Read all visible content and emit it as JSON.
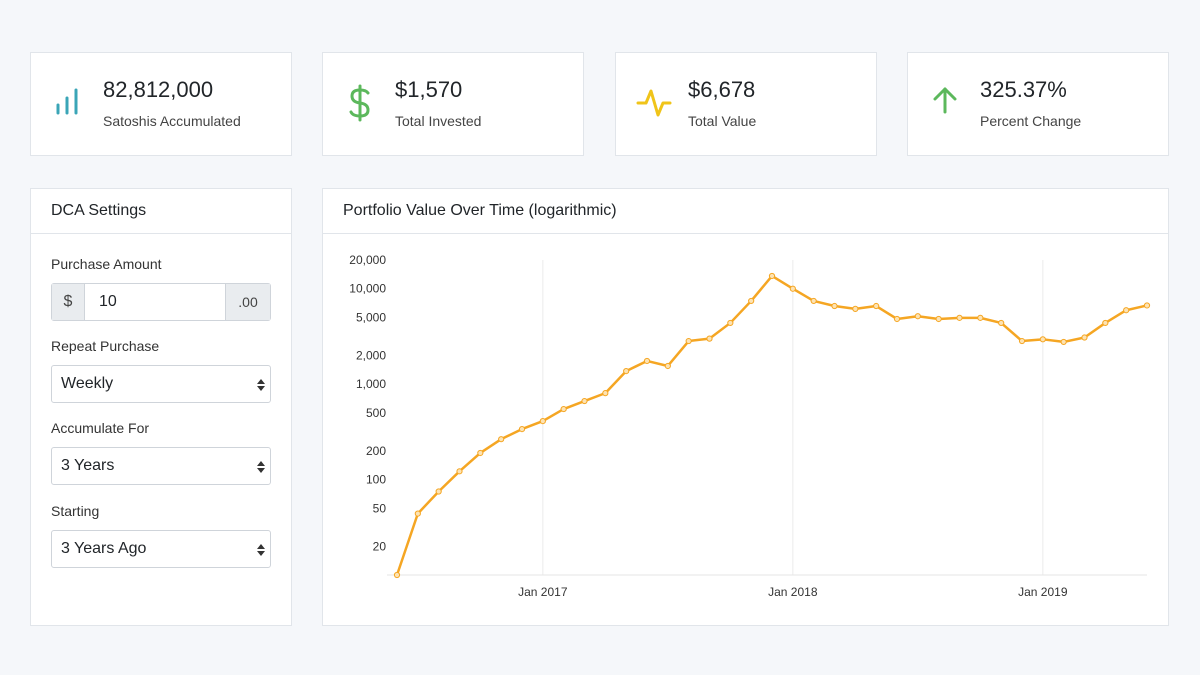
{
  "stats": [
    {
      "value": "82,812,000",
      "label": "Satoshis Accumulated"
    },
    {
      "value": "$1,570",
      "label": "Total Invested"
    },
    {
      "value": "$6,678",
      "label": "Total Value"
    },
    {
      "value": "325.37%",
      "label": "Percent Change"
    }
  ],
  "settings": {
    "title": "DCA Settings",
    "amount": {
      "label": "Purchase Amount",
      "prefix": "$",
      "value": "10",
      "suffix": ".00"
    },
    "repeat": {
      "label": "Repeat Purchase",
      "value": "Weekly"
    },
    "accumulate": {
      "label": "Accumulate For",
      "value": "3 Years"
    },
    "starting": {
      "label": "Starting",
      "value": "3 Years Ago"
    }
  },
  "chart_data": {
    "type": "line",
    "title": "Portfolio Value Over Time (logarithmic)",
    "log_scale": true,
    "grid": "x",
    "x": [
      "2016-06",
      "2016-07",
      "2016-08",
      "2016-09",
      "2016-10",
      "2016-11",
      "2016-12",
      "2017-01",
      "2017-02",
      "2017-03",
      "2017-04",
      "2017-05",
      "2017-06",
      "2017-07",
      "2017-08",
      "2017-09",
      "2017-10",
      "2017-11",
      "2017-12",
      "2018-01",
      "2018-02",
      "2018-03",
      "2018-04",
      "2018-05",
      "2018-06",
      "2018-07",
      "2018-08",
      "2018-09",
      "2018-10",
      "2018-11",
      "2018-12",
      "2019-01",
      "2019-02",
      "2019-03",
      "2019-04",
      "2019-05",
      "2019-06"
    ],
    "series": [
      {
        "name": "Portfolio Value",
        "color": "#f5a623",
        "values": [
          10,
          44,
          75,
          122,
          190,
          265,
          338,
          410,
          548,
          665,
          805,
          1370,
          1750,
          1550,
          2830,
          3000,
          4380,
          7450,
          13600,
          10000,
          7450,
          6590,
          6150,
          6590,
          4820,
          5150,
          4820,
          4950,
          4950,
          4380,
          2830,
          2950,
          2770,
          3080,
          4380,
          5950,
          6678
        ]
      }
    ],
    "xlim": [
      "2016-06",
      "2019-06"
    ],
    "xticks": [
      {
        "value": "2017-01",
        "label": "Jan 2017"
      },
      {
        "value": "2018-01",
        "label": "Jan 2018"
      },
      {
        "value": "2019-01",
        "label": "Jan 2019"
      }
    ],
    "ylim": [
      10,
      20000
    ],
    "yticks": [
      20,
      50,
      100,
      200,
      500,
      {
        "value": 1000,
        "label": "1,000"
      },
      {
        "value": 2000,
        "label": "2,000"
      },
      {
        "value": 5000,
        "label": "5,000"
      },
      {
        "value": 10000,
        "label": "10,000"
      },
      {
        "value": 20000,
        "label": "20,000"
      }
    ]
  }
}
